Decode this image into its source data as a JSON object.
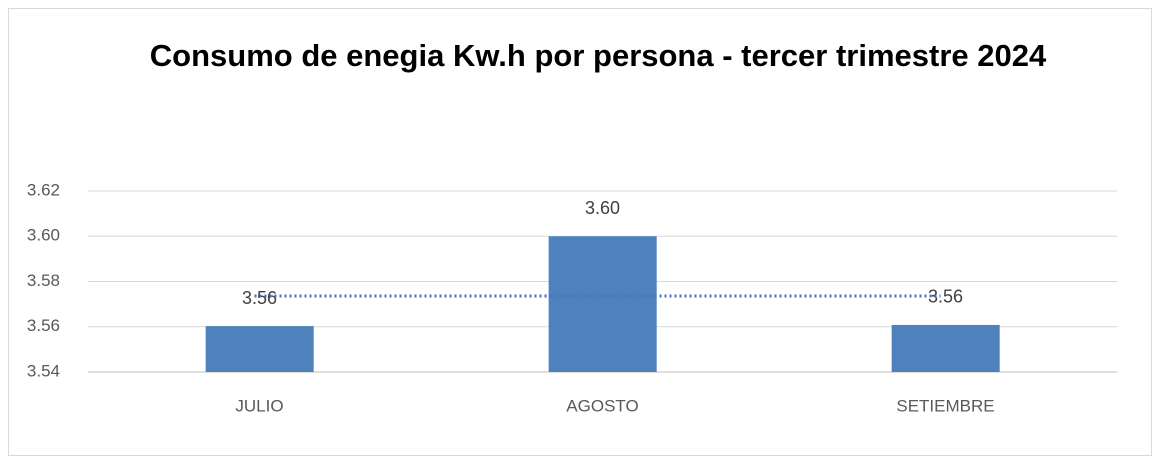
{
  "chart_data": {
    "type": "bar",
    "title": "Consumo de enegia Kw.h por persona - tercer trimestre 2024",
    "categories": [
      "JULIO",
      "AGOSTO",
      "SETIEMBRE"
    ],
    "values": [
      3.5603,
      3.6,
      3.5608
    ],
    "value_labels": [
      "3.56",
      "3.60",
      "3.56"
    ],
    "color": "#4f81bd",
    "ylim": [
      3.54,
      3.62
    ],
    "yticks": [
      3.54,
      3.56,
      3.58,
      {
        "value": 3.6,
        "label": "3.60"
      },
      3.62
    ],
    "grid": true,
    "trendline": {
      "color": "#4472c4",
      "style": "dotted",
      "values": [
        3.5736,
        3.5736,
        3.5736
      ]
    }
  }
}
